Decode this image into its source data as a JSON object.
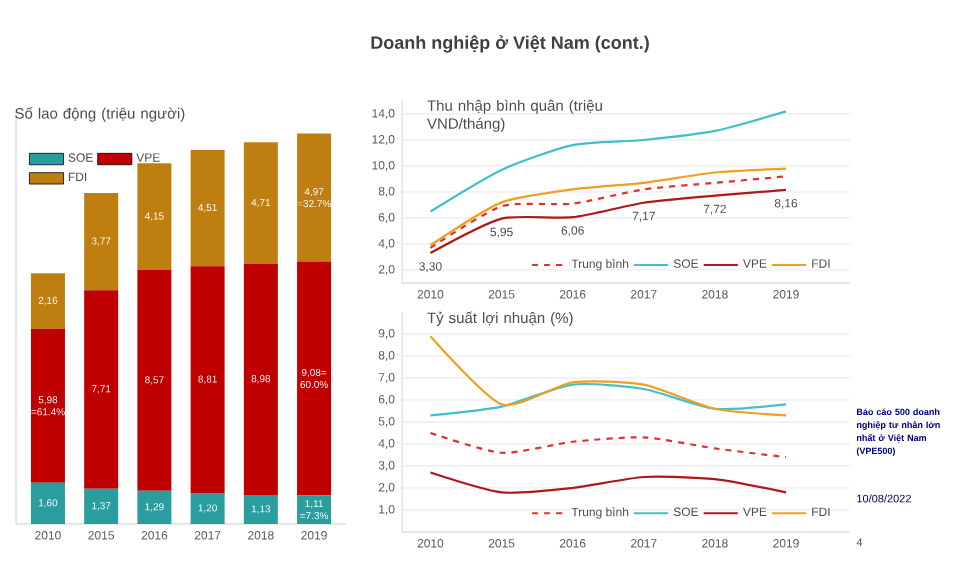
{
  "chart_data": [
    {
      "type": "bar",
      "stacked": true,
      "title": "Số lao động (triệu người)",
      "categories": [
        "2010",
        "2015",
        "2016",
        "2017",
        "2018",
        "2019"
      ],
      "ylim": [
        0,
        16
      ],
      "legend": "top left",
      "series": [
        {
          "name": "SOE",
          "color": "#2a9d9f",
          "values": [
            1.6,
            1.37,
            1.29,
            1.2,
            1.13,
            1.11
          ],
          "value_labels": [
            "1,60",
            "1,37",
            "1,29",
            "1,20",
            "1,13",
            "1,11 =7.3%"
          ]
        },
        {
          "name": "VPE",
          "color": "#c00000",
          "values": [
            5.98,
            7.71,
            8.57,
            8.81,
            8.98,
            9.08
          ],
          "value_labels": [
            "5,98 =61.4%",
            "7,71",
            "8,57",
            "8,81",
            "8,98",
            "9,08= 60.0%"
          ]
        },
        {
          "name": "FDI",
          "color": "#bf7f10",
          "values": [
            2.16,
            3.77,
            4.15,
            4.51,
            4.71,
            4.97
          ],
          "value_labels": [
            "2,16",
            "3,77",
            "4,15",
            "4,51",
            "4,71",
            "4,97 =32.7%"
          ]
        }
      ]
    },
    {
      "type": "line",
      "title": "Thu nhập bình quân (triệu VND/tháng)",
      "categories": [
        "2010",
        "2015",
        "2016",
        "2017",
        "2018",
        "2019"
      ],
      "ylim": [
        1,
        15
      ],
      "yticks": [
        {
          "value": 2,
          "label": "2,0"
        },
        {
          "value": 4,
          "label": "4,0"
        },
        {
          "value": 6,
          "label": "6,0"
        },
        {
          "value": 8,
          "label": "8,0"
        },
        {
          "value": 10,
          "label": "10,0"
        },
        {
          "value": 12,
          "label": "12,0"
        },
        {
          "value": 14,
          "label": "14,0"
        }
      ],
      "grid": "y",
      "legend": "bottom right",
      "series": [
        {
          "name": "Trung bình",
          "color": "#e03030",
          "line_style": "dashed",
          "values": [
            3.7,
            6.9,
            7.1,
            8.2,
            8.7,
            9.2
          ]
        },
        {
          "name": "SOE",
          "color": "#40c0c8",
          "line_style": "solid",
          "values": [
            6.5,
            9.7,
            11.6,
            12.0,
            12.7,
            14.2
          ]
        },
        {
          "name": "VPE",
          "color": "#b01818",
          "line_style": "solid",
          "values": [
            3.3,
            5.95,
            6.06,
            7.17,
            7.72,
            8.16
          ],
          "value_labels": [
            "3,30",
            "5,95",
            "6,06",
            "7,17",
            "7,72",
            "8,16"
          ]
        },
        {
          "name": "FDI",
          "color": "#f0a020",
          "line_style": "solid",
          "values": [
            3.9,
            7.2,
            8.2,
            8.7,
            9.5,
            9.8
          ]
        }
      ]
    },
    {
      "type": "line",
      "title": "Tỷ suất lợi nhuận (%)",
      "categories": [
        "2010",
        "2015",
        "2016",
        "2017",
        "2018",
        "2019"
      ],
      "ylim": [
        0,
        10
      ],
      "yticks": [
        {
          "value": 1,
          "label": "1,0"
        },
        {
          "value": 2,
          "label": "2,0"
        },
        {
          "value": 3,
          "label": "3,0"
        },
        {
          "value": 4,
          "label": "4,0"
        },
        {
          "value": 5,
          "label": "5,0"
        },
        {
          "value": 6,
          "label": "6,0"
        },
        {
          "value": 7,
          "label": "7,0"
        },
        {
          "value": 8,
          "label": "8,0"
        },
        {
          "value": 9,
          "label": "9,0"
        }
      ],
      "grid": "y",
      "legend": "bottom right",
      "series": [
        {
          "name": "Trung bình",
          "color": "#e03030",
          "line_style": "dashed",
          "values": [
            4.5,
            3.6,
            4.1,
            4.3,
            3.8,
            3.4
          ]
        },
        {
          "name": "SOE",
          "color": "#40c0c8",
          "line_style": "solid",
          "values": [
            5.3,
            5.7,
            6.7,
            6.5,
            5.6,
            5.8
          ]
        },
        {
          "name": "VPE",
          "color": "#b01818",
          "line_style": "solid",
          "values": [
            2.7,
            1.8,
            2.0,
            2.5,
            2.4,
            1.8
          ]
        },
        {
          "name": "FDI",
          "color": "#f0a020",
          "line_style": "solid",
          "values": [
            8.9,
            5.8,
            6.8,
            6.7,
            5.6,
            5.3
          ]
        }
      ]
    },
    {
      "type": "other",
      "title": "Doanh nghiệp ở Việt Nam (cont.)",
      "annotations": [
        "Báo cáo 500 doanh nghiệp tư nhân lớn nhất ở Việt Nam (VPE500)",
        "10/08/2022",
        "4"
      ]
    }
  ]
}
